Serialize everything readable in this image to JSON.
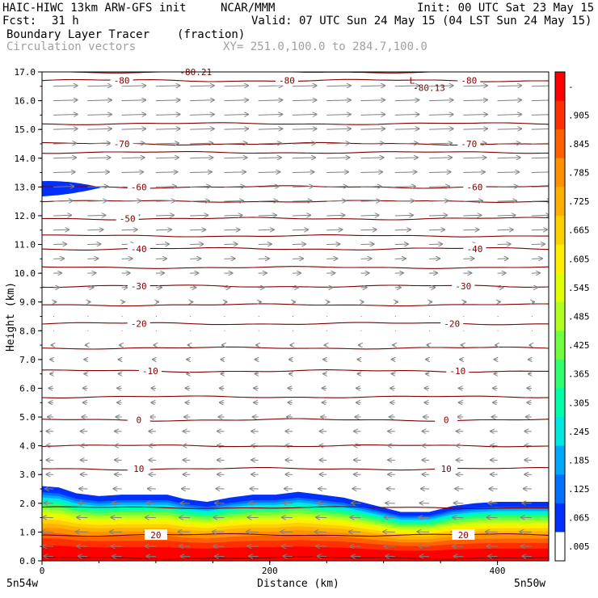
{
  "header": {
    "model": "HAIC-HIWC 13km ARW-GFS init",
    "org": "NCAR/MMM",
    "init": "Init: 00 UTC Sat 23 May 15",
    "fcst_label": "Fcst:",
    "fcst_value": "31 h",
    "valid": "Valid: 07 UTC Sun 24 May 15 (04 LST Sun 24 May 15)",
    "field": "Boundary Layer Tracer",
    "units": "(fraction)",
    "vectors": "Circulation vectors",
    "xy": "XY= 251.0,100.0 to 284.7,100.0"
  },
  "chart_data": {
    "type": "heatmap",
    "title": "Boundary Layer Tracer",
    "ylabel": "Height (km)",
    "xlabel": "Distance (km)",
    "xlim": [
      0,
      445
    ],
    "ylim": [
      0,
      17
    ],
    "x_ticks": [
      "0",
      "200",
      "400"
    ],
    "x_tick_values": [
      0,
      200,
      400
    ],
    "x_end_labels": [
      "5n54w",
      "5n50w"
    ],
    "y_ticks": [
      "0.0",
      "1.0",
      "2.0",
      "3.0",
      "4.0",
      "5.0",
      "6.0",
      "7.0",
      "8.0",
      "9.0",
      "10.0",
      "11.0",
      "12.0",
      "13.0",
      "14.0",
      "15.0",
      "16.0",
      "17.0"
    ],
    "colorbar_labels": [
      "-",
      ".905",
      ".845",
      ".785",
      ".725",
      ".665",
      ".605",
      ".545",
      ".485",
      ".425",
      ".365",
      ".305",
      ".245",
      ".185",
      ".125",
      ".065",
      ".005"
    ],
    "colorbar_colors": [
      "#ff0000",
      "#ff3000",
      "#ff6000",
      "#ff9000",
      "#ffb000",
      "#ffd000",
      "#ffee00",
      "#e0ff00",
      "#b0ff20",
      "#70ff40",
      "#30ff70",
      "#00ffa8",
      "#00e8e0",
      "#00a8ff",
      "#0070ff",
      "#0030ff",
      "#ffffff"
    ],
    "tracer_top_km": [
      [
        0,
        2.6
      ],
      [
        15,
        2.55
      ],
      [
        30,
        2.35
      ],
      [
        50,
        2.25
      ],
      [
        70,
        2.3
      ],
      [
        90,
        2.3
      ],
      [
        110,
        2.3
      ],
      [
        125,
        2.15
      ],
      [
        145,
        2.05
      ],
      [
        165,
        2.2
      ],
      [
        185,
        2.3
      ],
      [
        205,
        2.3
      ],
      [
        225,
        2.4
      ],
      [
        245,
        2.3
      ],
      [
        265,
        2.2
      ],
      [
        290,
        1.95
      ],
      [
        315,
        1.7
      ],
      [
        340,
        1.7
      ],
      [
        360,
        1.9
      ],
      [
        380,
        2.0
      ],
      [
        400,
        2.05
      ],
      [
        420,
        2.05
      ],
      [
        445,
        2.05
      ]
    ],
    "tracer_blob_13km": {
      "x_range": [
        0,
        52
      ],
      "y_center": 12.95,
      "value": 0.005
    },
    "temperature_contours": [
      {
        "label": "-80",
        "height": 16.7,
        "label_x": [
          70,
          215,
          375
        ]
      },
      {
        "label": "-70",
        "height": 14.5,
        "label_x": [
          70,
          375
        ]
      },
      {
        "label": "-60",
        "height": 13.0,
        "label_x": [
          85,
          380
        ]
      },
      {
        "label": "-50",
        "height": 11.9,
        "label_x": [
          75
        ]
      },
      {
        "label": "-40",
        "height": 10.85,
        "label_x": [
          85,
          380
        ]
      },
      {
        "label": "-30",
        "height": 9.55,
        "label_x": [
          85,
          370
        ]
      },
      {
        "label": "-20",
        "height": 8.25,
        "label_x": [
          85,
          360
        ]
      },
      {
        "label": "-10",
        "height": 6.6,
        "label_x": [
          95,
          365
        ]
      },
      {
        "label": "0",
        "height": 4.9,
        "label_x": [
          85,
          355
        ]
      },
      {
        "label": "10",
        "height": 3.2,
        "label_x": [
          85,
          355
        ]
      },
      {
        "label": "20",
        "height": 0.9,
        "label_x": [
          100,
          370
        ]
      }
    ],
    "extra_contour_labels": [
      {
        "label": "-80.21",
        "x": 135,
        "y": 17.0
      },
      {
        "label": "-80.13",
        "x": 340,
        "y": 16.45
      },
      {
        "label": "L",
        "x": 325,
        "y": 16.7
      }
    ],
    "secondary_contour_heights": [
      17.0,
      15.2,
      14.2,
      12.5,
      11.3,
      10.2,
      8.9,
      7.4,
      5.7,
      4.0,
      1.85,
      0.1
    ],
    "wind_profile": [
      {
        "height": 16.5,
        "u": 1.0
      },
      {
        "height": 16.0,
        "u": 1.0
      },
      {
        "height": 15.5,
        "u": 1.0
      },
      {
        "height": 15.0,
        "u": 1.0
      },
      {
        "height": 14.5,
        "u": 0.95
      },
      {
        "height": 14.0,
        "u": 0.95
      },
      {
        "height": 13.5,
        "u": 0.9
      },
      {
        "height": 13.0,
        "u": 0.85
      },
      {
        "height": 12.5,
        "u": 0.8
      },
      {
        "height": 12.0,
        "u": 0.75
      },
      {
        "height": 11.5,
        "u": 0.65
      },
      {
        "height": 11.0,
        "u": 0.55
      },
      {
        "height": 10.5,
        "u": 0.45
      },
      {
        "height": 10.0,
        "u": 0.35
      },
      {
        "height": 9.5,
        "u": 0.25
      },
      {
        "height": 9.0,
        "u": 0.12
      },
      {
        "height": 8.5,
        "u": 0.05
      },
      {
        "height": 8.0,
        "u": -0.05
      },
      {
        "height": 7.5,
        "u": -0.1
      },
      {
        "height": 7.0,
        "u": -0.15
      },
      {
        "height": 6.5,
        "u": -0.15
      },
      {
        "height": 6.0,
        "u": -0.2
      },
      {
        "height": 5.5,
        "u": -0.2
      },
      {
        "height": 5.0,
        "u": -0.25
      },
      {
        "height": 4.5,
        "u": -0.3
      },
      {
        "height": 4.0,
        "u": -0.3
      },
      {
        "height": 3.5,
        "u": -0.3
      },
      {
        "height": 3.0,
        "u": -0.3
      },
      {
        "height": 2.5,
        "u": -0.35
      },
      {
        "height": 2.0,
        "u": -0.4
      },
      {
        "height": 1.5,
        "u": -0.45
      },
      {
        "height": 1.0,
        "u": -0.5
      },
      {
        "height": 0.5,
        "u": -0.45
      },
      {
        "height": 0.15,
        "u": -0.4
      }
    ],
    "vector_x_positions": [
      10,
      40,
      70,
      100,
      130,
      160,
      190,
      220,
      250,
      280,
      310,
      340,
      370,
      400,
      430
    ],
    "colors": {
      "contour": "#800000",
      "vector": "#808080",
      "frame": "#000000"
    }
  }
}
